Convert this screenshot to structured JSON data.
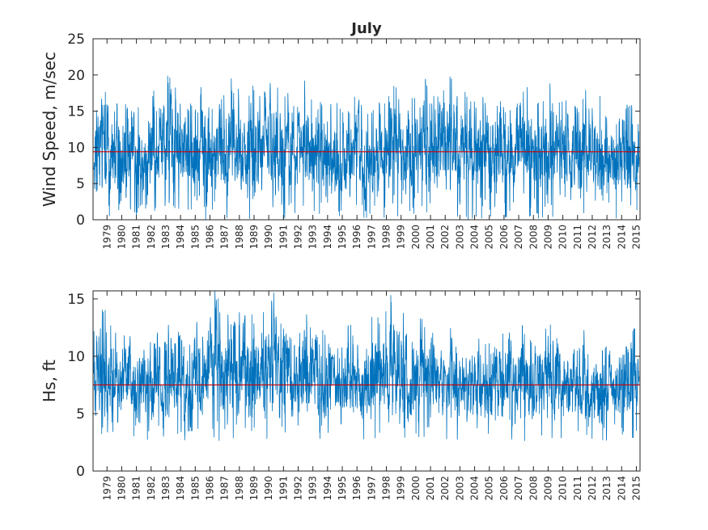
{
  "chart_data": [
    {
      "type": "line",
      "title": "July",
      "xlabel": "",
      "ylabel": "Wind Speed, m/sec",
      "xlim": [
        1978.55,
        2015.75
      ],
      "ylim": [
        0,
        25
      ],
      "yticks": [
        0,
        5,
        10,
        15,
        20,
        25
      ],
      "xtick_labels": [
        "1979",
        "1980",
        "1981",
        "1982",
        "1983",
        "1984",
        "1985",
        "1986",
        "1987",
        "1988",
        "1989",
        "1990",
        "1991",
        "1992",
        "1993",
        "1994",
        "1995",
        "1996",
        "1997",
        "1998",
        "1999",
        "2000",
        "2001",
        "2002",
        "2003",
        "2004",
        "2005",
        "2006",
        "2007",
        "2008",
        "2009",
        "2010",
        "2011",
        "2012",
        "2013",
        "2014",
        "2015"
      ],
      "mean_line": 9.4,
      "grid": false,
      "series": [
        {
          "type": "line",
          "approx_range": [
            0,
            20.3
          ],
          "peaks": [
            {
              "x": 1979.2,
              "y": 18.5
            },
            {
              "x": 1982.5,
              "y": 18.5
            },
            {
              "x": 1983.8,
              "y": 20.2
            },
            {
              "x": 1986.0,
              "y": 18.5
            },
            {
              "x": 1988.0,
              "y": 20.0
            },
            {
              "x": 1990.7,
              "y": 20.3
            },
            {
              "x": 1992.0,
              "y": 19.0
            },
            {
              "x": 1993.0,
              "y": 19.5
            },
            {
              "x": 1996.5,
              "y": 18.0
            },
            {
              "x": 1999.0,
              "y": 19.0
            },
            {
              "x": 2001.2,
              "y": 19.5
            },
            {
              "x": 2003.0,
              "y": 19.8
            },
            {
              "x": 2004.8,
              "y": 19.0
            },
            {
              "x": 2008.0,
              "y": 19.0
            },
            {
              "x": 2009.5,
              "y": 19.0
            },
            {
              "x": 2012.0,
              "y": 18.0
            },
            {
              "x": 2013.0,
              "y": 17.5
            },
            {
              "x": 2015.0,
              "y": 16.0
            }
          ]
        }
      ]
    },
    {
      "type": "line",
      "title": "",
      "xlabel": "",
      "ylabel": "Hs, ft",
      "xlim": [
        1978.55,
        2015.75
      ],
      "ylim": [
        0,
        15.7
      ],
      "yticks": [
        0,
        5,
        10,
        15
      ],
      "xtick_labels": [
        "1979",
        "1980",
        "1981",
        "1982",
        "1983",
        "1984",
        "1985",
        "1986",
        "1987",
        "1988",
        "1989",
        "1990",
        "1991",
        "1992",
        "1993",
        "1994",
        "1995",
        "1996",
        "1997",
        "1998",
        "1999",
        "2000",
        "2001",
        "2002",
        "2003",
        "2004",
        "2005",
        "2006",
        "2007",
        "2008",
        "2009",
        "2010",
        "2011",
        "2012",
        "2013",
        "2014",
        "2015"
      ],
      "mean_line": 7.5,
      "grid": false,
      "series": [
        {
          "type": "line",
          "approx_range": [
            2.6,
            15.7
          ],
          "peaks": [
            {
              "x": 1979.2,
              "y": 14.3
            },
            {
              "x": 1981.0,
              "y": 13.2
            },
            {
              "x": 1983.8,
              "y": 13.8
            },
            {
              "x": 1985.5,
              "y": 13.0
            },
            {
              "x": 1987.0,
              "y": 15.7
            },
            {
              "x": 1990.7,
              "y": 15.7
            },
            {
              "x": 1993.0,
              "y": 14.0
            },
            {
              "x": 1996.0,
              "y": 13.0
            },
            {
              "x": 1998.8,
              "y": 15.5
            },
            {
              "x": 2001.0,
              "y": 13.5
            },
            {
              "x": 2003.0,
              "y": 13.0
            },
            {
              "x": 2007.8,
              "y": 13.5
            },
            {
              "x": 2009.5,
              "y": 13.0
            },
            {
              "x": 2012.0,
              "y": 12.5
            },
            {
              "x": 2015.2,
              "y": 13.0
            }
          ]
        }
      ]
    }
  ],
  "colors": {
    "series": "#0072bd",
    "mean_line": "#d00000",
    "axes": "#262626"
  }
}
